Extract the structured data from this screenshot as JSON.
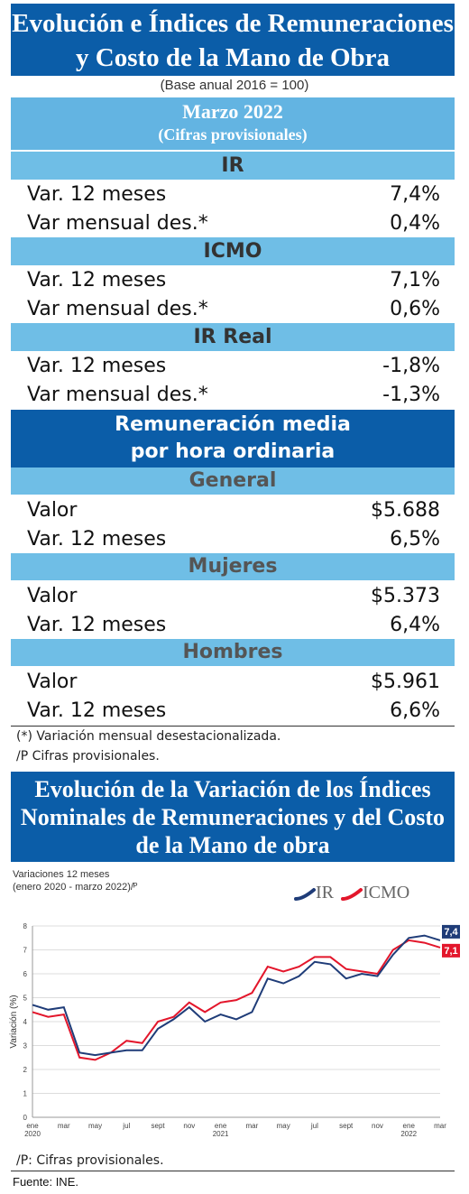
{
  "header": {
    "title_line1": "Evolución e Índices de Remuneraciones",
    "title_line2": "y Costo de la Mano de Obra",
    "base": "(Base anual 2016 = 100)",
    "period": "Marzo  2022",
    "period_note": "(Cifras provisionales)"
  },
  "sections": [
    {
      "title": "IR",
      "rows": [
        {
          "label": "Var. 12 meses",
          "value": "7,4%"
        },
        {
          "label": "Var mensual des.*",
          "value": "0,4%"
        }
      ]
    },
    {
      "title": "ICMO",
      "rows": [
        {
          "label": "Var. 12 meses",
          "value": "7,1%"
        },
        {
          "label": "Var mensual des.*",
          "value": "0,6%"
        }
      ]
    },
    {
      "title": "IR Real",
      "rows": [
        {
          "label": "Var. 12 meses",
          "value": "-1,8%"
        },
        {
          "label": "Var mensual des.*",
          "value": "-1,3%"
        }
      ]
    }
  ],
  "remuneracion": {
    "title_line1": "Remuneración media",
    "title_line2": "por hora ordinaria",
    "groups": [
      {
        "title": "General",
        "rows": [
          {
            "label": "Valor",
            "value": "$5.688"
          },
          {
            "label": "Var. 12 meses",
            "value": "6,5%"
          }
        ]
      },
      {
        "title": "Mujeres",
        "rows": [
          {
            "label": "Valor",
            "value": "$5.373"
          },
          {
            "label": "Var. 12 meses",
            "value": "6,4%"
          }
        ]
      },
      {
        "title": "Hombres",
        "rows": [
          {
            "label": "Valor",
            "value": "$5.961"
          },
          {
            "label": "Var. 12 meses",
            "value": "6,6%"
          }
        ]
      }
    ]
  },
  "notes": {
    "note1": "(*) Variación mensual desestacionalizada.",
    "note2": "/P Cifras provisionales."
  },
  "chart_section": {
    "title_line1": "Evolución de la Variación de los Índices",
    "title_line2": "Nominales de Remuneraciones y del Costo",
    "title_line3": "de la Mano de obra",
    "subtitle_line1": "Variaciones 12 meses",
    "subtitle_line2": "(enero 2020 - marzo 2022)/ᴾ",
    "footnote": "/P:   Cifras provisionales.",
    "source": "Fuente: INE."
  },
  "colors": {
    "ir": "#1f3c78",
    "icmo": "#e3162b",
    "band_dark": "#0b5da8",
    "band_light": "#6fbee6"
  },
  "chart_data": {
    "type": "line",
    "x": [
      "2020-01",
      "2020-02",
      "2020-03",
      "2020-04",
      "2020-05",
      "2020-06",
      "2020-07",
      "2020-08",
      "2020-09",
      "2020-10",
      "2020-11",
      "2020-12",
      "2021-01",
      "2021-02",
      "2021-03",
      "2021-04",
      "2021-05",
      "2021-06",
      "2021-07",
      "2021-08",
      "2021-09",
      "2021-10",
      "2021-11",
      "2021-12",
      "2022-01",
      "2022-02",
      "2022-03"
    ],
    "tick_labels": [
      "ene\n2020",
      "mar",
      "may",
      "jul",
      "sept",
      "nov",
      "ene\n2021",
      "mar",
      "may",
      "jul",
      "sept",
      "nov",
      "ene\n2022",
      "mar"
    ],
    "series": [
      {
        "name": "IR",
        "values": [
          4.7,
          4.5,
          4.6,
          2.7,
          2.6,
          2.7,
          2.8,
          2.8,
          3.7,
          4.1,
          4.6,
          4.0,
          4.3,
          4.1,
          4.4,
          5.8,
          5.6,
          5.9,
          6.5,
          6.4,
          5.8,
          6.0,
          5.9,
          6.8,
          7.5,
          7.6,
          7.4
        ]
      },
      {
        "name": "ICMO",
        "values": [
          4.4,
          4.2,
          4.3,
          2.5,
          2.4,
          2.7,
          3.2,
          3.1,
          4.0,
          4.2,
          4.8,
          4.4,
          4.8,
          4.9,
          5.2,
          6.3,
          6.1,
          6.3,
          6.7,
          6.7,
          6.2,
          6.1,
          6.0,
          7.0,
          7.4,
          7.3,
          7.1
        ]
      }
    ],
    "end_labels": {
      "ir": "7,4",
      "icmo": "7,1"
    },
    "ylabel": "Variación (%)",
    "ylim": [
      0,
      8
    ],
    "yticks": [
      "0",
      "1",
      "2",
      "3",
      "4",
      "5",
      "6",
      "7",
      "8"
    ],
    "grid": true,
    "legend_position": "top-right"
  }
}
